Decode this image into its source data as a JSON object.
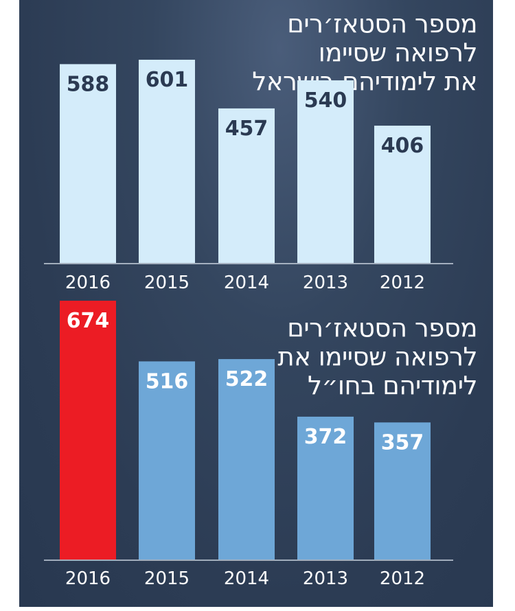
{
  "chart_data": [
    {
      "type": "bar",
      "title_lines": [
        "מספר הסטאז׳רים",
        "לרפואה שסיימו",
        "את לימודיהם בישראל"
      ],
      "categories": [
        "2016",
        "2015",
        "2014",
        "2013",
        "2012"
      ],
      "values": [
        588,
        601,
        457,
        540,
        406
      ],
      "colors": [
        "#d4ecfa",
        "#d4ecfa",
        "#d4ecfa",
        "#d4ecfa",
        "#d4ecfa"
      ],
      "label_color": "#2b3a52",
      "xlabel": "",
      "ylabel": "",
      "grid": false
    },
    {
      "type": "bar",
      "title_lines": [
        "מספר הסטאז׳רים",
        "לרפואה שסיימו את",
        "לימודיהם בחו״ל"
      ],
      "categories": [
        "2016",
        "2015",
        "2014",
        "2013",
        "2012"
      ],
      "values": [
        674,
        516,
        522,
        372,
        357
      ],
      "colors": [
        "#ec1c24",
        "#6ea7d7",
        "#6ea7d7",
        "#6ea7d7",
        "#6ea7d7"
      ],
      "label_color": "#ffffff",
      "xlabel": "",
      "ylabel": "",
      "grid": false
    }
  ]
}
